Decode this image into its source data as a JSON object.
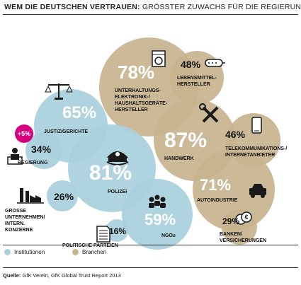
{
  "title_bold": "WEM DIE DEUTSCHEN VERTRAUEN:",
  "title_rest": "GRÖSSTER ZUWACHS FÜR DIE REGIERUNG",
  "legend": [
    {
      "label": "Institutionen",
      "color": "#a9cfdd"
    },
    {
      "label": "Branchen",
      "color": "#c8b38e"
    }
  ],
  "source": {
    "label": "Quelle:",
    "text": "GfK Verein, GfK Global Trust Report 2013"
  },
  "colors": {
    "institution": "#a9cfdd",
    "branche": "#c8b38e",
    "badge": "#d6007e",
    "text_dark": "#1a1a1a",
    "text_light": "#ffffff"
  },
  "chart_data": {
    "type": "bubble",
    "unit": "%",
    "badge": {
      "text": "+5%",
      "target": "Regierung"
    },
    "series": [
      {
        "name": "Institutionen",
        "items": [
          {
            "label": "JUSTIZ/GERICHTE",
            "value": 65,
            "icon": "scales-icon"
          },
          {
            "label": "REGIERUNG",
            "value": 34,
            "icon": "government-official-icon"
          },
          {
            "label": "POLIZEI",
            "value": 81,
            "icon": "police-cap-icon"
          },
          {
            "label": "GROSSE UNTERNEHMEN/ INTERN. KONZERNE",
            "value": 26,
            "icon": "factory-icon"
          },
          {
            "label": "NGOs",
            "value": 59,
            "icon": "group-people-icon"
          },
          {
            "label": "POLITISCHE PARTEIEN",
            "value": 16,
            "icon": "document-icon"
          }
        ]
      },
      {
        "name": "Branchen",
        "items": [
          {
            "label": "UNTERHALTUNGS- ELEKTRONIK-/ HAUSHALTSGERÄTE- HERSTELLER",
            "value": 78,
            "icon": "washing-machine-icon"
          },
          {
            "label": "LEBENSMITTEL- HERSTELLER",
            "value": 48,
            "icon": "sausage-icon"
          },
          {
            "label": "HANDWERK",
            "value": 87,
            "icon": "tools-icon"
          },
          {
            "label": "TELEKOMMUNIKATIONS-/ INTERNETANBIETER",
            "value": 46,
            "icon": "smartphone-icon"
          },
          {
            "label": "AUTOINDUSTRIE",
            "value": 71,
            "icon": "car-icon"
          },
          {
            "label": "BANKEN/ VERSICHERUNGEN",
            "value": 29,
            "icon": "coins-icon"
          }
        ]
      }
    ]
  }
}
